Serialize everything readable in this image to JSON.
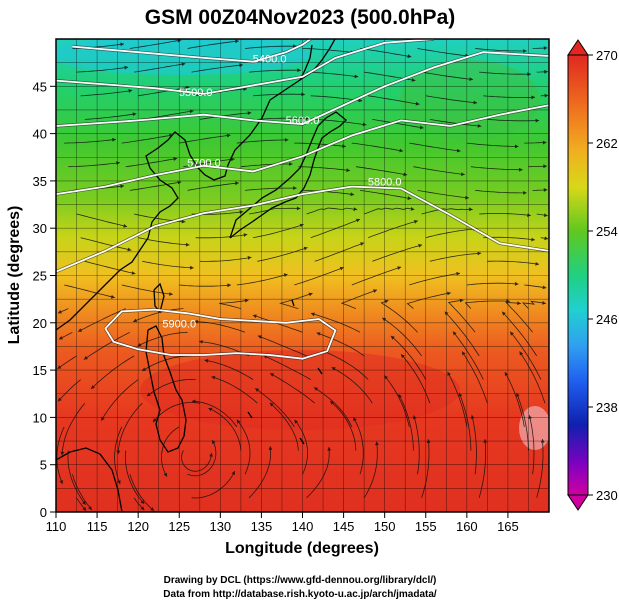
{
  "title": "GSM 00Z04Nov2023 (500.0hPa)",
  "xlabel": "Longitude (degrees)",
  "ylabel": "Latitude  (degrees)",
  "credits": [
    "Drawing by DCL (https://www.gfd-dennou.org/library/dcl/)",
    "Data from http://database.rish.kyoto-u.ac.jp/arch/jmadata/"
  ],
  "chart_data": {
    "type": "heatmap",
    "xlim": [
      110,
      170
    ],
    "ylim": [
      0,
      50
    ],
    "x_ticks": [
      "110",
      "115",
      "120",
      "125",
      "130",
      "135",
      "140",
      "145",
      "150",
      "155",
      "160",
      "165"
    ],
    "x_tick_values": [
      110,
      115,
      120,
      125,
      130,
      135,
      140,
      145,
      150,
      155,
      160,
      165
    ],
    "y_ticks": [
      "0",
      "5",
      "10",
      "15",
      "20",
      "25",
      "30",
      "35",
      "40",
      "45"
    ],
    "y_tick_values": [
      0,
      5,
      10,
      15,
      20,
      25,
      30,
      35,
      40,
      45
    ],
    "grid": true,
    "colorbar": {
      "labels": [
        "270",
        "262",
        "254",
        "246",
        "238",
        "230"
      ],
      "values": [
        270,
        262,
        254,
        246,
        238,
        230
      ],
      "min": 230,
      "max": 270
    },
    "contours": [
      {
        "label": "5400.0",
        "lon": 136.0,
        "lat": 47.5,
        "path": [
          [
            112,
            49.2
          ],
          [
            120,
            48.6
          ],
          [
            128,
            48.0
          ],
          [
            134,
            47.6
          ],
          [
            138,
            48.6
          ],
          [
            140,
            49.4
          ],
          [
            141,
            50
          ]
        ]
      },
      {
        "label": "5500.0",
        "lon": 127.0,
        "lat": 44.0,
        "path": [
          [
            110,
            45.6
          ],
          [
            116,
            45.2
          ],
          [
            122,
            44.8
          ],
          [
            128,
            44.2
          ],
          [
            132,
            44.8
          ],
          [
            136,
            45.4
          ],
          [
            140,
            46.0
          ],
          [
            144,
            48.0
          ],
          [
            150,
            49.6
          ],
          [
            156,
            50
          ]
        ]
      },
      {
        "label": "5600.0",
        "lon": 140.0,
        "lat": 41.0,
        "path": [
          [
            110,
            40.8
          ],
          [
            120,
            41.4
          ],
          [
            128,
            42.0
          ],
          [
            134,
            41.4
          ],
          [
            140,
            41.0
          ],
          [
            144,
            42.6
          ],
          [
            150,
            45.0
          ],
          [
            156,
            47.0
          ],
          [
            162,
            48.6
          ],
          [
            170,
            48.2
          ]
        ]
      },
      {
        "label": "5700.0",
        "lon": 128.0,
        "lat": 36.5,
        "path": [
          [
            110,
            33.6
          ],
          [
            116,
            34.4
          ],
          [
            122,
            35.6
          ],
          [
            128,
            36.6
          ],
          [
            134,
            36.0
          ],
          [
            140,
            37.6
          ],
          [
            146,
            39.8
          ],
          [
            152,
            41.4
          ],
          [
            158,
            40.8
          ],
          [
            164,
            42.0
          ],
          [
            170,
            43.0
          ]
        ]
      },
      {
        "label": "5800.0",
        "lon": 150.0,
        "lat": 34.5,
        "path": [
          [
            110,
            25.4
          ],
          [
            116,
            27.6
          ],
          [
            122,
            30.2
          ],
          [
            128,
            31.6
          ],
          [
            134,
            32.4
          ],
          [
            140,
            33.6
          ],
          [
            146,
            34.4
          ],
          [
            152,
            34.2
          ],
          [
            158,
            31.4
          ],
          [
            164,
            28.4
          ],
          [
            170,
            27.6
          ]
        ]
      },
      {
        "label": "5900.0",
        "lon": 125.0,
        "lat": 19.5,
        "path": [
          [
            116,
            19.4
          ],
          [
            118,
            21.2
          ],
          [
            122,
            21.4
          ],
          [
            126,
            21.0
          ],
          [
            130,
            20.4
          ],
          [
            134,
            20.2
          ],
          [
            138,
            20.0
          ],
          [
            142,
            20.4
          ],
          [
            144,
            19.2
          ],
          [
            143,
            17.0
          ],
          [
            140,
            16.2
          ],
          [
            136,
            16.6
          ],
          [
            132,
            16.8
          ],
          [
            128,
            16.6
          ],
          [
            124,
            16.6
          ],
          [
            120,
            17.2
          ],
          [
            117,
            18.0
          ],
          [
            116,
            19.4
          ]
        ]
      }
    ]
  },
  "colors": {
    "temp_stops": [
      "#c000a0",
      "#8000c0",
      "#1020b0",
      "#2060f0",
      "#30a0f0",
      "#20d0d0",
      "#20d080",
      "#40c020",
      "#a0d010",
      "#e0d010",
      "#f0b020",
      "#f07020",
      "#e84020",
      "#e02820"
    ]
  }
}
